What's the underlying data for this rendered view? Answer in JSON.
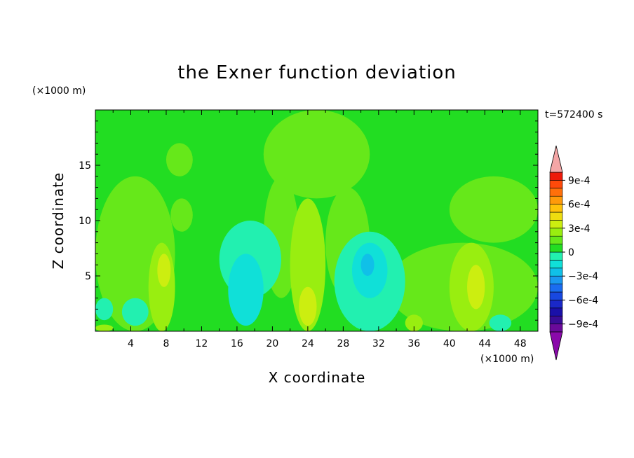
{
  "chart_data": {
    "type": "heatmap",
    "title": "the Exner function deviation",
    "xlabel": "X coordinate",
    "ylabel": "Z coordinate",
    "x_unit": "(×1000 m)",
    "y_unit": "(×1000 m)",
    "time_label": "t=572400 s",
    "xlim": [
      0,
      50
    ],
    "ylim": [
      0,
      20
    ],
    "xticks": [
      4,
      8,
      12,
      16,
      20,
      24,
      28,
      32,
      36,
      40,
      44,
      48
    ],
    "yticks": [
      5,
      10,
      15
    ],
    "colorbar": {
      "levels": [
        -0.001,
        -0.0009,
        -0.0008,
        -0.0007,
        -0.0006,
        -0.0005,
        -0.0004,
        -0.0003,
        -0.0002,
        -0.0001,
        0,
        0.0001,
        0.0002,
        0.0003,
        0.0004,
        0.0005,
        0.0006,
        0.0007,
        0.0008,
        0.0009,
        0.001
      ],
      "tick_labels": [
        "9e-4",
        "6e-4",
        "3e-4",
        "0",
        "−3e-4",
        "−6e-4",
        "−9e-4"
      ],
      "tick_values": [
        0.0009,
        0.0006,
        0.0003,
        0,
        -0.0003,
        -0.0006,
        -0.0009
      ],
      "colors": [
        "#6a0a9a",
        "#3a0c96",
        "#1a10a8",
        "#1a28c8",
        "#1848e0",
        "#1a6cf0",
        "#1a98f0",
        "#10c0e8",
        "#10e0d8",
        "#22f0b0",
        "#22dd22",
        "#66e81a",
        "#99ee10",
        "#ccee10",
        "#eedd10",
        "#ffc20a",
        "#ff9a0a",
        "#ff700a",
        "#ff4a0a",
        "#ee1a0a"
      ],
      "over_color": "#f4a6a6",
      "under_color": "#8a0aaa"
    },
    "background_level": 5e-05,
    "field_features": [
      {
        "xmin": 0,
        "xmax": 9,
        "zmin": 0,
        "zmax": 14,
        "value": 0.00015
      },
      {
        "xmin": 8,
        "xmax": 11,
        "zmin": 14,
        "zmax": 17,
        "value": 0.00015
      },
      {
        "xmin": 8.5,
        "xmax": 11,
        "zmin": 9,
        "zmax": 12,
        "value": 0.00015
      },
      {
        "xmin": 19,
        "xmax": 31,
        "zmin": 12,
        "zmax": 20,
        "value": 0.00015
      },
      {
        "xmin": 19,
        "xmax": 23,
        "zmin": 3,
        "zmax": 14,
        "value": 0.00015
      },
      {
        "xmin": 26,
        "xmax": 31,
        "zmin": 3,
        "zmax": 13,
        "value": 0.00015
      },
      {
        "xmin": 33,
        "xmax": 50,
        "zmin": 0,
        "zmax": 8,
        "value": 0.00015
      },
      {
        "xmin": 40,
        "xmax": 50,
        "zmin": 8,
        "zmax": 14,
        "value": 0.00015
      },
      {
        "xmin": 0,
        "xmax": 2,
        "zmin": 1,
        "zmax": 3,
        "value": -5e-05
      },
      {
        "xmin": 3,
        "xmax": 6,
        "zmin": 0.5,
        "zmax": 3,
        "value": -5e-05
      },
      {
        "xmin": 14,
        "xmax": 21,
        "zmin": 3,
        "zmax": 10,
        "value": -5e-05
      },
      {
        "xmin": 15,
        "xmax": 19,
        "zmin": 0.5,
        "zmax": 7,
        "value": -0.00015
      },
      {
        "xmin": 27,
        "xmax": 35,
        "zmin": 0,
        "zmax": 9,
        "value": -5e-05
      },
      {
        "xmin": 29,
        "xmax": 33,
        "zmin": 3,
        "zmax": 8,
        "value": -0.00015
      },
      {
        "xmin": 30,
        "xmax": 31.5,
        "zmin": 5,
        "zmax": 7,
        "value": -0.00025
      },
      {
        "xmin": 44.5,
        "xmax": 47,
        "zmin": 0,
        "zmax": 1.5,
        "value": -5e-05
      },
      {
        "xmin": 6,
        "xmax": 9,
        "zmin": 0,
        "zmax": 8,
        "value": 0.00025
      },
      {
        "xmin": 7,
        "xmax": 8.5,
        "zmin": 4,
        "zmax": 7,
        "value": 0.00035
      },
      {
        "xmin": 22,
        "xmax": 26,
        "zmin": 0,
        "zmax": 12,
        "value": 0.00025
      },
      {
        "xmin": 23,
        "xmax": 25,
        "zmin": 0.5,
        "zmax": 4,
        "value": 0.00035
      },
      {
        "xmin": 40,
        "xmax": 45,
        "zmin": 0,
        "zmax": 8,
        "value": 0.00025
      },
      {
        "xmin": 42,
        "xmax": 44,
        "zmin": 2,
        "zmax": 6,
        "value": 0.00035
      },
      {
        "xmin": 35,
        "xmax": 37,
        "zmin": 0,
        "zmax": 1.5,
        "value": 0.00025
      },
      {
        "xmin": 0,
        "xmax": 2,
        "zmin": 0,
        "zmax": 0.6,
        "value": 0.00025
      }
    ]
  }
}
